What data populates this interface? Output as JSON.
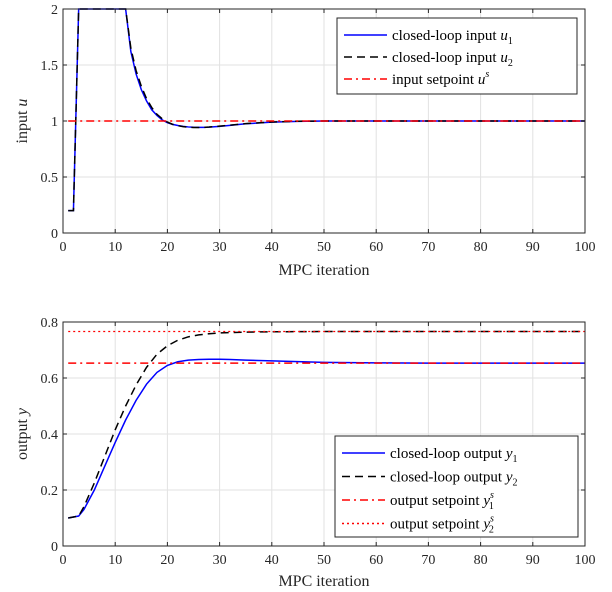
{
  "chart_data": [
    {
      "type": "line",
      "xlabel": "MPC iteration",
      "ylabel": "input",
      "ylabel_var": "u",
      "xlim": [
        0,
        100
      ],
      "ylim": [
        0,
        2
      ],
      "xticks": [
        0,
        10,
        20,
        30,
        40,
        50,
        60,
        70,
        80,
        90,
        100
      ],
      "yticks": [
        0,
        0.5,
        1,
        1.5,
        2
      ],
      "grid": true,
      "legend_position": "top-right",
      "series": [
        {
          "name": "closed-loop input u1",
          "legend_text": "closed-loop input ",
          "legend_var": "u",
          "legend_sub": "1",
          "legend_sup": "",
          "color": "#0000ff",
          "style": "solid",
          "x": [
            1,
            2,
            3,
            4,
            5,
            6,
            7,
            8,
            9,
            10,
            11,
            12,
            13,
            14,
            15,
            16,
            17,
            18,
            19,
            20,
            21,
            22,
            23,
            24,
            25,
            26,
            27,
            28,
            30,
            32,
            35,
            40,
            45,
            50,
            60,
            70,
            80,
            90,
            100
          ],
          "y": [
            0.2,
            0.2,
            2,
            2,
            2,
            2,
            2,
            2,
            2,
            2,
            2,
            2,
            1.62,
            1.42,
            1.28,
            1.18,
            1.1,
            1.05,
            1.01,
            0.985,
            0.97,
            0.96,
            0.952,
            0.947,
            0.944,
            0.943,
            0.943,
            0.945,
            0.952,
            0.961,
            0.975,
            0.99,
            0.997,
            1.0,
            1.0,
            1.0,
            1.0,
            1.0,
            1.0
          ]
        },
        {
          "name": "closed-loop input u2",
          "legend_text": "closed-loop input ",
          "legend_var": "u",
          "legend_sub": "2",
          "legend_sup": "",
          "color": "#000000",
          "style": "dashed",
          "x": [
            1,
            2,
            3,
            4,
            5,
            6,
            7,
            8,
            9,
            10,
            11,
            12,
            13,
            14,
            15,
            16,
            17,
            18,
            19,
            20,
            21,
            22,
            23,
            24,
            25,
            26,
            27,
            28,
            30,
            32,
            35,
            40,
            45,
            50,
            60,
            70,
            80,
            90,
            100
          ],
          "y": [
            0.2,
            0.2,
            2,
            2,
            2,
            2,
            2,
            2,
            2,
            2,
            2,
            2,
            1.65,
            1.45,
            1.31,
            1.2,
            1.12,
            1.06,
            1.02,
            0.99,
            0.97,
            0.958,
            0.95,
            0.945,
            0.942,
            0.942,
            0.943,
            0.946,
            0.954,
            0.963,
            0.977,
            0.991,
            0.998,
            1.0,
            1.0,
            1.0,
            1.0,
            1.0,
            1.0
          ]
        },
        {
          "name": "input setpoint u^s",
          "legend_text": "input setpoint ",
          "legend_var": "u",
          "legend_sub": "",
          "legend_sup": "s",
          "color": "#ff0000",
          "style": "dashdot",
          "x": [
            1,
            100
          ],
          "y": [
            1,
            1
          ]
        }
      ]
    },
    {
      "type": "line",
      "xlabel": "MPC iteration",
      "ylabel": "output",
      "ylabel_var": "y",
      "xlim": [
        0,
        100
      ],
      "ylim": [
        0,
        0.8
      ],
      "xticks": [
        0,
        10,
        20,
        30,
        40,
        50,
        60,
        70,
        80,
        90,
        100
      ],
      "yticks": [
        0,
        0.2,
        0.4,
        0.6,
        0.8
      ],
      "grid": true,
      "legend_position": "bottom-right",
      "series": [
        {
          "name": "closed-loop output y1",
          "legend_text": "closed-loop output ",
          "legend_var": "y",
          "legend_sub": "1",
          "legend_sup": "",
          "color": "#0000ff",
          "style": "solid",
          "x": [
            1,
            3,
            4,
            6,
            8,
            10,
            12,
            14,
            16,
            18,
            20,
            22,
            24,
            26,
            28,
            30,
            32,
            35,
            40,
            50,
            60,
            70,
            80,
            90,
            100
          ],
          "y": [
            0.1,
            0.107,
            0.13,
            0.2,
            0.285,
            0.37,
            0.45,
            0.52,
            0.578,
            0.62,
            0.645,
            0.658,
            0.664,
            0.666,
            0.667,
            0.667,
            0.666,
            0.664,
            0.661,
            0.656,
            0.654,
            0.653,
            0.653,
            0.653,
            0.653
          ]
        },
        {
          "name": "closed-loop output y2",
          "legend_text": "closed-loop output ",
          "legend_var": "y",
          "legend_sub": "2",
          "legend_sup": "",
          "color": "#000000",
          "style": "dashed",
          "x": [
            1,
            3,
            4,
            6,
            8,
            10,
            12,
            14,
            16,
            18,
            20,
            22,
            24,
            26,
            28,
            30,
            32,
            35,
            40,
            50,
            60,
            70,
            80,
            90,
            100
          ],
          "y": [
            0.1,
            0.107,
            0.14,
            0.225,
            0.32,
            0.415,
            0.5,
            0.575,
            0.638,
            0.685,
            0.715,
            0.735,
            0.747,
            0.754,
            0.758,
            0.761,
            0.762,
            0.764,
            0.765,
            0.766,
            0.766,
            0.766,
            0.766,
            0.766,
            0.766
          ]
        },
        {
          "name": "output setpoint y1^s",
          "legend_text": "output setpoint ",
          "legend_var": "y",
          "legend_sub": "1",
          "legend_sup": "s",
          "color": "#ff0000",
          "style": "dashdot",
          "x": [
            1,
            100
          ],
          "y": [
            0.653,
            0.653
          ]
        },
        {
          "name": "output setpoint y2^s",
          "legend_text": "output setpoint ",
          "legend_var": "y",
          "legend_sub": "2",
          "legend_sup": "s",
          "color": "#ff0000",
          "style": "dotted",
          "x": [
            1,
            100
          ],
          "y": [
            0.766,
            0.766
          ]
        }
      ]
    }
  ]
}
